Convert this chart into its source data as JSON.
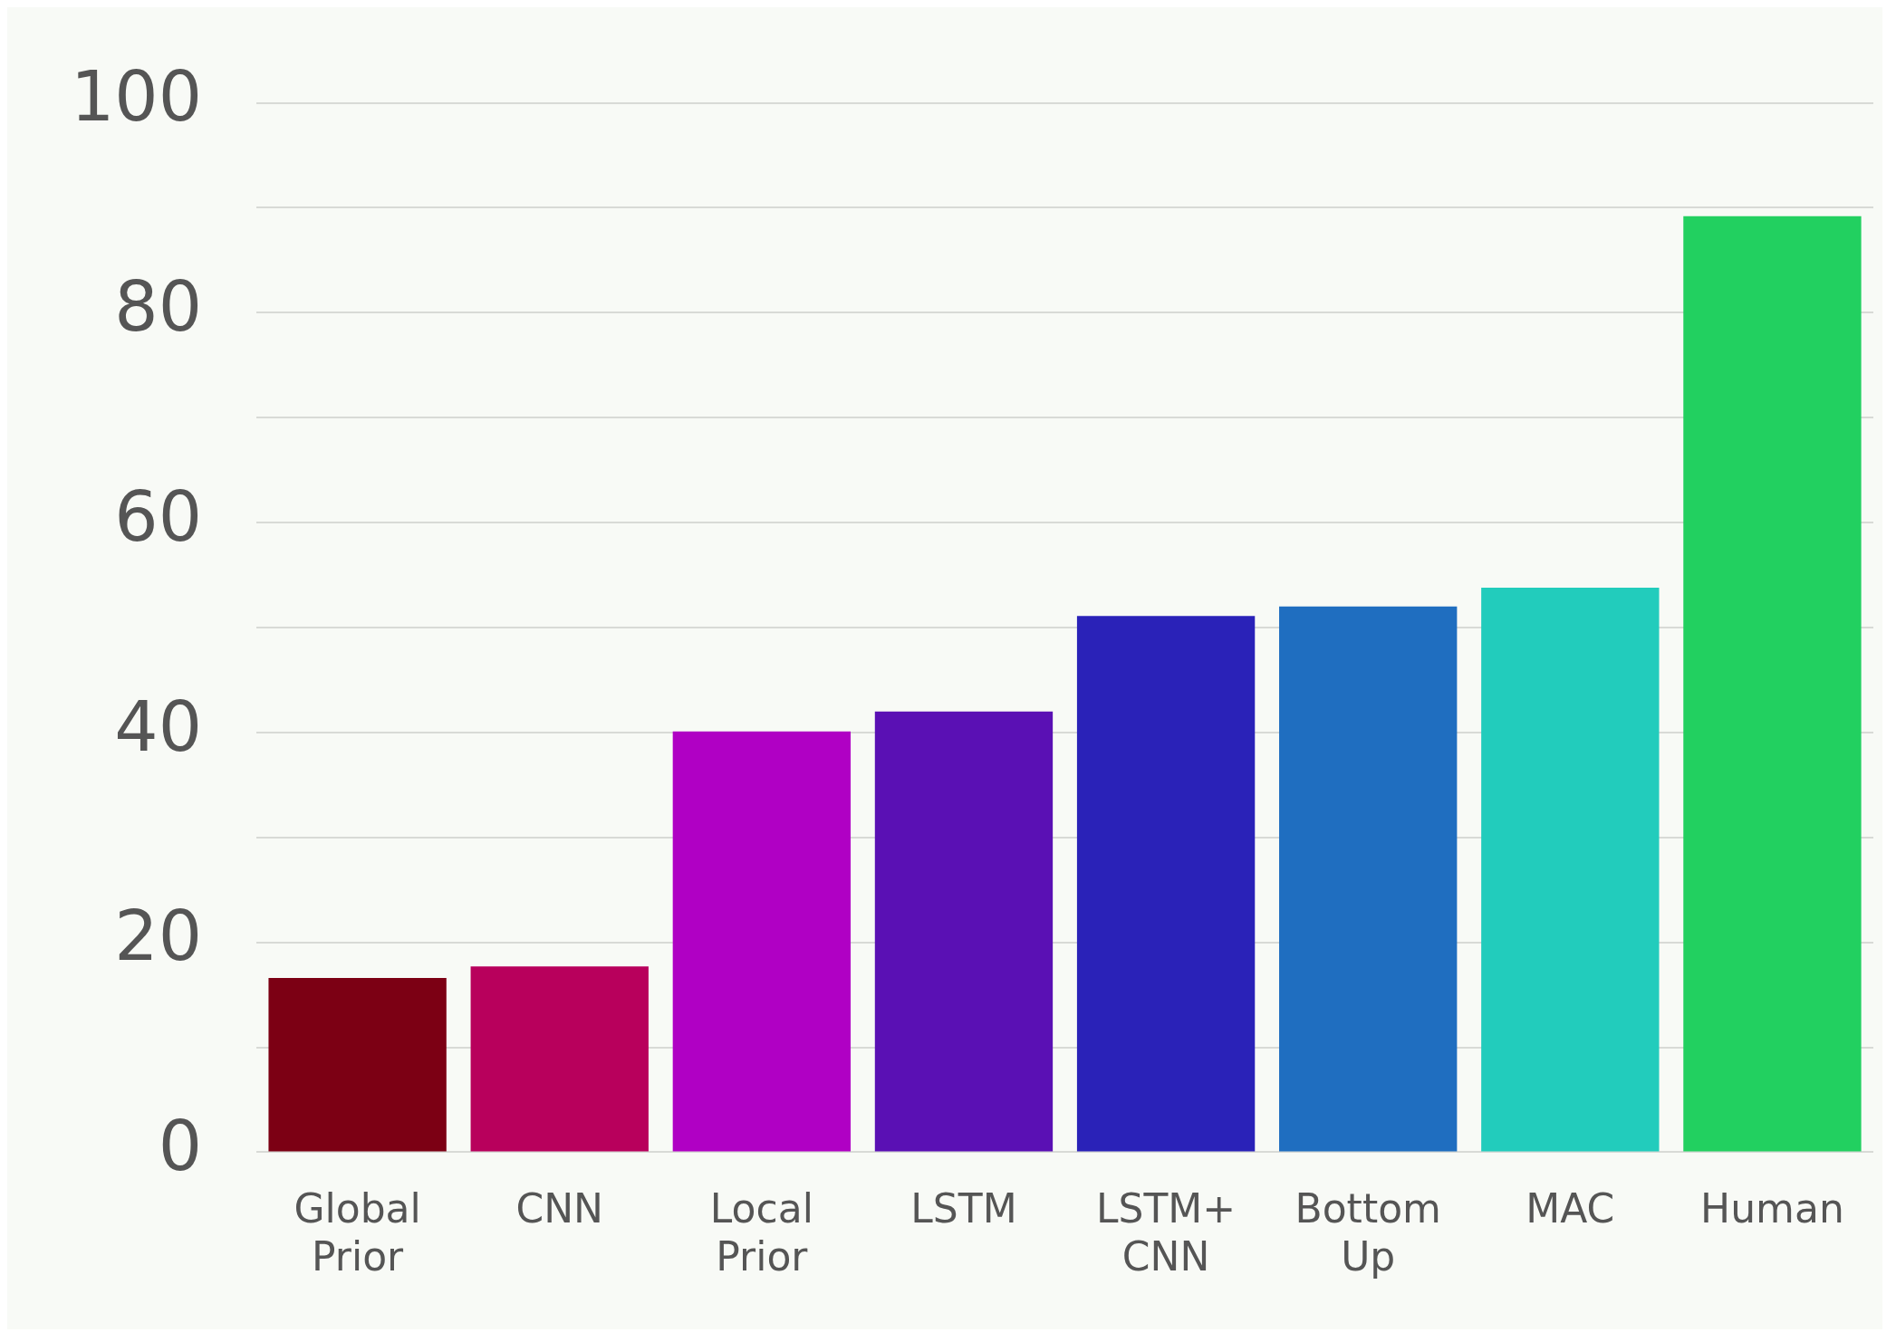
{
  "chart_data": {
    "type": "bar",
    "categories": [
      "Global Prior",
      "CNN",
      "Local Prior",
      "LSTM",
      "LSTM+ CNN",
      "Bottom Up",
      "MAC",
      "Human"
    ],
    "values": [
      16.6,
      17.7,
      40.1,
      42.0,
      51.1,
      52.0,
      53.8,
      89.2
    ],
    "colors": [
      "#7c0014",
      "#b8005c",
      "#b000c4",
      "#5a10b4",
      "#2a22b8",
      "#1f6ec0",
      "#22ccbc",
      "#22d060"
    ],
    "ylim": [
      0,
      100
    ],
    "yticks": [
      0,
      {
        "value": 10,
        "label": null
      },
      20,
      {
        "value": 30,
        "label": null
      },
      40,
      {
        "value": 50,
        "label": null
      },
      60,
      {
        "value": 70,
        "label": null
      },
      80,
      {
        "value": 90,
        "label": null
      },
      100
    ],
    "grid": "y",
    "legend": false
  }
}
